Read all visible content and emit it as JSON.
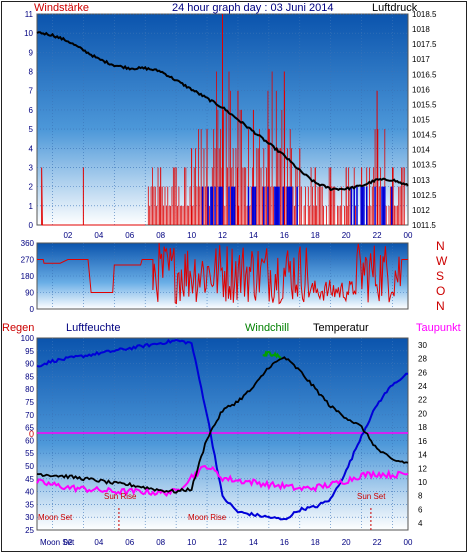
{
  "header": {
    "left_label": "Windstärke",
    "title": "24 hour graph day : 03 Juni 2014",
    "right_label": "Luftdruck"
  },
  "colors": {
    "plot_bg_top": "#0d5db5",
    "plot_bg_bottom": "#ffffff",
    "wind_red": "#e00000",
    "blue": "#0000d8",
    "magenta": "#ff00ff",
    "green": "#00a000",
    "black": "#000000",
    "axis_text": "#000080"
  },
  "charts": {
    "wind": {
      "left_ticks": [
        "0",
        "1",
        "2",
        "3",
        "4",
        "5",
        "6",
        "7",
        "8",
        "9",
        "10",
        "11"
      ],
      "right_ticks": [
        "1011.5",
        "1012",
        "1012.5",
        "1013",
        "1013.5",
        "1014",
        "1014.5",
        "1015",
        "1015.5",
        "1016",
        "1016.5",
        "1017",
        "1017.5",
        "1018",
        "1018.5"
      ],
      "x_ticks": [
        "02",
        "04",
        "06",
        "08",
        "10",
        "12",
        "14",
        "16",
        "18",
        "20",
        "22",
        "00"
      ]
    },
    "direction": {
      "left_ticks": [
        "0",
        "90",
        "180",
        "270",
        "360"
      ],
      "right_letters": [
        "N",
        "W",
        "S",
        "O",
        "N"
      ]
    },
    "temp": {
      "labels": {
        "regen": "Regen",
        "luftfeuchte": "Luftfeuchte",
        "windchill": "Windchill",
        "temperatur": "Temperatur",
        "taupunkt": "Taupunkt"
      },
      "left_ticks": [
        "25",
        "30",
        "35",
        "40",
        "45",
        "50",
        "55",
        "60",
        "65",
        "70",
        "75",
        "80",
        "85",
        "90",
        "95",
        "100"
      ],
      "right_ticks": [
        "4",
        "6",
        "8",
        "10",
        "12",
        "14",
        "16",
        "18",
        "20",
        "22",
        "24",
        "26",
        "28",
        "30"
      ],
      "x_ticks": [
        "02",
        "04",
        "06",
        "08",
        "10",
        "12",
        "14",
        "16",
        "18",
        "20",
        "22",
        "00"
      ],
      "rain_zero_label": "0",
      "annotations": {
        "sun_rise": "Sun Rise",
        "sun_set": "Sun Set",
        "moon_set": "Moon Set",
        "moon_rise": "Moon Rise",
        "moon_set_bottom": "Moon Set"
      }
    }
  },
  "chart_data": [
    {
      "type": "line",
      "title": "24 hour graph day : 03 Juni 2014",
      "series": [
        {
          "name": "Luftdruck",
          "axis": "right",
          "x": [
            0,
            1,
            2,
            3,
            4,
            5,
            6,
            7,
            8,
            9,
            10,
            11,
            12,
            13,
            14,
            15,
            16,
            17,
            18,
            19,
            20,
            21,
            22,
            23,
            24
          ],
          "values": [
            1017.9,
            1017.8,
            1017.6,
            1017.3,
            1017.0,
            1016.8,
            1016.7,
            1016.7,
            1016.6,
            1016.3,
            1016.0,
            1015.7,
            1015.4,
            1015.0,
            1014.6,
            1014.2,
            1013.8,
            1013.3,
            1012.9,
            1012.7,
            1012.7,
            1012.8,
            1013.0,
            1013.0,
            1012.8
          ]
        },
        {
          "name": "Windstärke",
          "axis": "left",
          "type": "bar",
          "x": [
            1,
            2,
            3,
            4,
            5,
            6,
            7,
            8,
            9,
            10,
            11,
            12,
            13,
            14,
            15,
            16,
            17,
            18,
            19,
            20,
            21,
            22,
            23
          ],
          "values": [
            0,
            0,
            3,
            0,
            0,
            0,
            0,
            3,
            3,
            4,
            5,
            11,
            7,
            6,
            5,
            8,
            4,
            3,
            3,
            3,
            3,
            7,
            3
          ]
        }
      ],
      "x_ticks": [
        "02",
        "04",
        "06",
        "08",
        "10",
        "12",
        "14",
        "16",
        "18",
        "20",
        "22",
        "00"
      ],
      "ylim": [
        0,
        11
      ],
      "ylim_right": [
        1011.5,
        1018.5
      ]
    },
    {
      "type": "line",
      "series": [
        {
          "name": "Windrichtung",
          "x": [
            0,
            2,
            4,
            6,
            7,
            8,
            10,
            12,
            14,
            16,
            18,
            20,
            22,
            24
          ],
          "values": [
            270,
            270,
            90,
            270,
            270,
            200,
            190,
            200,
            190,
            180,
            180,
            100,
            250,
            270
          ]
        }
      ],
      "ylim": [
        0,
        360
      ]
    },
    {
      "type": "line",
      "series": [
        {
          "name": "Luftfeuchte",
          "axis": "left",
          "x": [
            0,
            1,
            2,
            3,
            4,
            5,
            6,
            7,
            8,
            9,
            10,
            11,
            12,
            13,
            14,
            15,
            16,
            17,
            18,
            19,
            20,
            21,
            22,
            23,
            24
          ],
          "values": [
            89,
            91,
            92,
            93,
            94,
            95,
            96,
            97,
            98,
            99,
            98,
            70,
            38,
            32,
            31,
            30,
            29,
            33,
            34,
            37,
            48,
            62,
            74,
            82,
            86
          ]
        },
        {
          "name": "Temperatur",
          "axis": "right",
          "x": [
            0,
            1,
            2,
            3,
            4,
            5,
            6,
            7,
            8,
            9,
            10,
            11,
            12,
            13,
            14,
            15,
            16,
            17,
            18,
            19,
            20,
            21,
            22,
            23,
            24
          ],
          "values": [
            11.2,
            11.0,
            10.8,
            10.5,
            10.2,
            9.8,
            9.6,
            9.2,
            8.8,
            8.6,
            9.0,
            16.4,
            20.4,
            21.8,
            23.8,
            26.8,
            28.2,
            26.2,
            23.6,
            21.0,
            19.4,
            18.0,
            14.8,
            13.2,
            12.8
          ]
        },
        {
          "name": "Taupunkt",
          "axis": "right",
          "x": [
            0,
            1,
            2,
            3,
            4,
            5,
            6,
            7,
            8,
            9,
            10,
            11,
            12,
            13,
            14,
            15,
            16,
            17,
            18,
            19,
            20,
            21,
            22,
            23,
            24
          ],
          "values": [
            10.0,
            9.6,
            9.2,
            9.0,
            8.8,
            8.6,
            8.6,
            8.6,
            8.4,
            8.6,
            10.8,
            12.4,
            10.6,
            10.2,
            10.0,
            9.6,
            9.4,
            9.0,
            9.2,
            9.6,
            10.2,
            11.0,
            11.2,
            11.0,
            11.2
          ]
        },
        {
          "name": "Windchill",
          "axis": "right",
          "x": [
            14.6,
            15.0,
            15.4,
            15.8
          ],
          "values": [
            28.4,
            28.8,
            28.6,
            28.2
          ]
        }
      ],
      "ylim": [
        25,
        100
      ],
      "ylim_right": [
        4,
        30
      ],
      "x_ticks": [
        "02",
        "04",
        "06",
        "08",
        "10",
        "12",
        "14",
        "16",
        "18",
        "20",
        "22",
        "00"
      ]
    }
  ]
}
